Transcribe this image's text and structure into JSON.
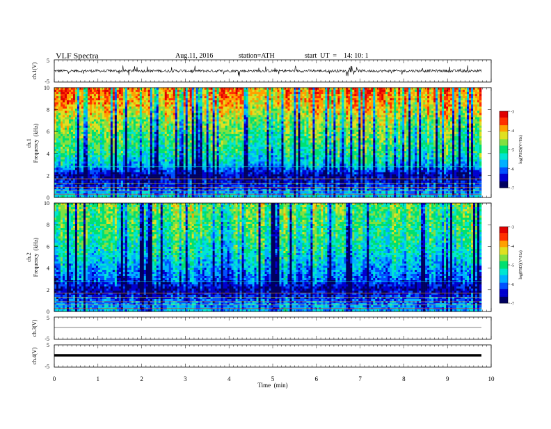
{
  "header": {
    "title": "VLF  Spectra",
    "date": "Aug.11, 2016",
    "station": "station=ATH",
    "start": "start  UT  =    14: 10: 1"
  },
  "chart_data": [
    {
      "type": "line",
      "panel": "ch1-waveform",
      "ylabel": "ch.1(V)",
      "ylim": [
        -5,
        5
      ],
      "xlim": [
        0,
        10
      ],
      "y_ticks": [
        "5",
        "-5"
      ],
      "baseline_v": 0,
      "description_values": {
        "typical_amplitude_v": 0.6,
        "max_spike_v": 2.5
      }
    },
    {
      "type": "heatmap",
      "panel": "ch1-spectrogram",
      "ylabel": "ch.1\nFrequency  (kHz)",
      "ylabel_top": "ch.1",
      "ylabel_bottom": "Frequency  (kHz)",
      "ylim": [
        0,
        10
      ],
      "xlim": [
        0,
        9.8
      ],
      "y_ticks": [
        "0",
        "2",
        "4",
        "6",
        "8",
        "10"
      ],
      "colorbar": {
        "label": "log(PSD)(V²/Hz)",
        "range": [
          -7,
          -3
        ],
        "ticks": [
          "-3",
          "-4",
          "-5",
          "-6",
          "-7"
        ]
      },
      "profile_khz": [
        0,
        1,
        2,
        3,
        4,
        5,
        6,
        7,
        8,
        9,
        10
      ],
      "profile_log_psd": [
        -5.4,
        -6.2,
        -6.6,
        -5.6,
        -5.2,
        -5.0,
        -4.8,
        -4.6,
        -4.2,
        -3.9,
        -3.8
      ]
    },
    {
      "type": "heatmap",
      "panel": "ch2-spectrogram",
      "ylabel_top": "ch.2",
      "ylabel_bottom": "Frequency  (kHz)",
      "ylim": [
        0,
        10
      ],
      "xlim": [
        0,
        9.8
      ],
      "y_ticks": [
        "0",
        "2",
        "4",
        "6",
        "8",
        "10"
      ],
      "colorbar": {
        "label": "log(PSD)(V²/Hz)",
        "range": [
          -7,
          -3
        ],
        "ticks": [
          "-3",
          "-4",
          "-5",
          "-6",
          "-7"
        ]
      },
      "profile_khz": [
        0,
        1,
        2,
        3,
        4,
        5,
        6,
        7,
        8,
        9,
        10
      ],
      "profile_log_psd": [
        -5.6,
        -6.0,
        -6.6,
        -6.0,
        -5.7,
        -5.4,
        -5.2,
        -5.0,
        -4.9,
        -4.8,
        -4.7
      ]
    },
    {
      "type": "line",
      "panel": "ch3-waveform",
      "ylabel": "ch.3(V)",
      "ylim": [
        -5,
        5
      ],
      "xlim": [
        0,
        10
      ],
      "y_ticks": [
        "5",
        "-5"
      ],
      "baseline_v": 0
    },
    {
      "type": "line",
      "panel": "ch4-waveform",
      "ylabel": "ch.4(V)",
      "ylim": [
        -5,
        5
      ],
      "xlim": [
        0,
        10
      ],
      "y_ticks": [
        "5",
        "-5"
      ],
      "baseline_v": 0
    }
  ],
  "xaxis": {
    "label": "Time  (min)",
    "ticks": [
      "0",
      "1",
      "2",
      "3",
      "4",
      "5",
      "6",
      "7",
      "8",
      "9",
      "10"
    ],
    "range": [
      0,
      10
    ]
  },
  "colors": {
    "colormap": [
      "#000060",
      "#0000d0",
      "#0050ff",
      "#00b0ff",
      "#00e6d0",
      "#00e070",
      "#80e040",
      "#e0e020",
      "#ffa000",
      "#ff3000",
      "#e00000",
      "#f4c4c4"
    ],
    "trace": "#000000"
  }
}
